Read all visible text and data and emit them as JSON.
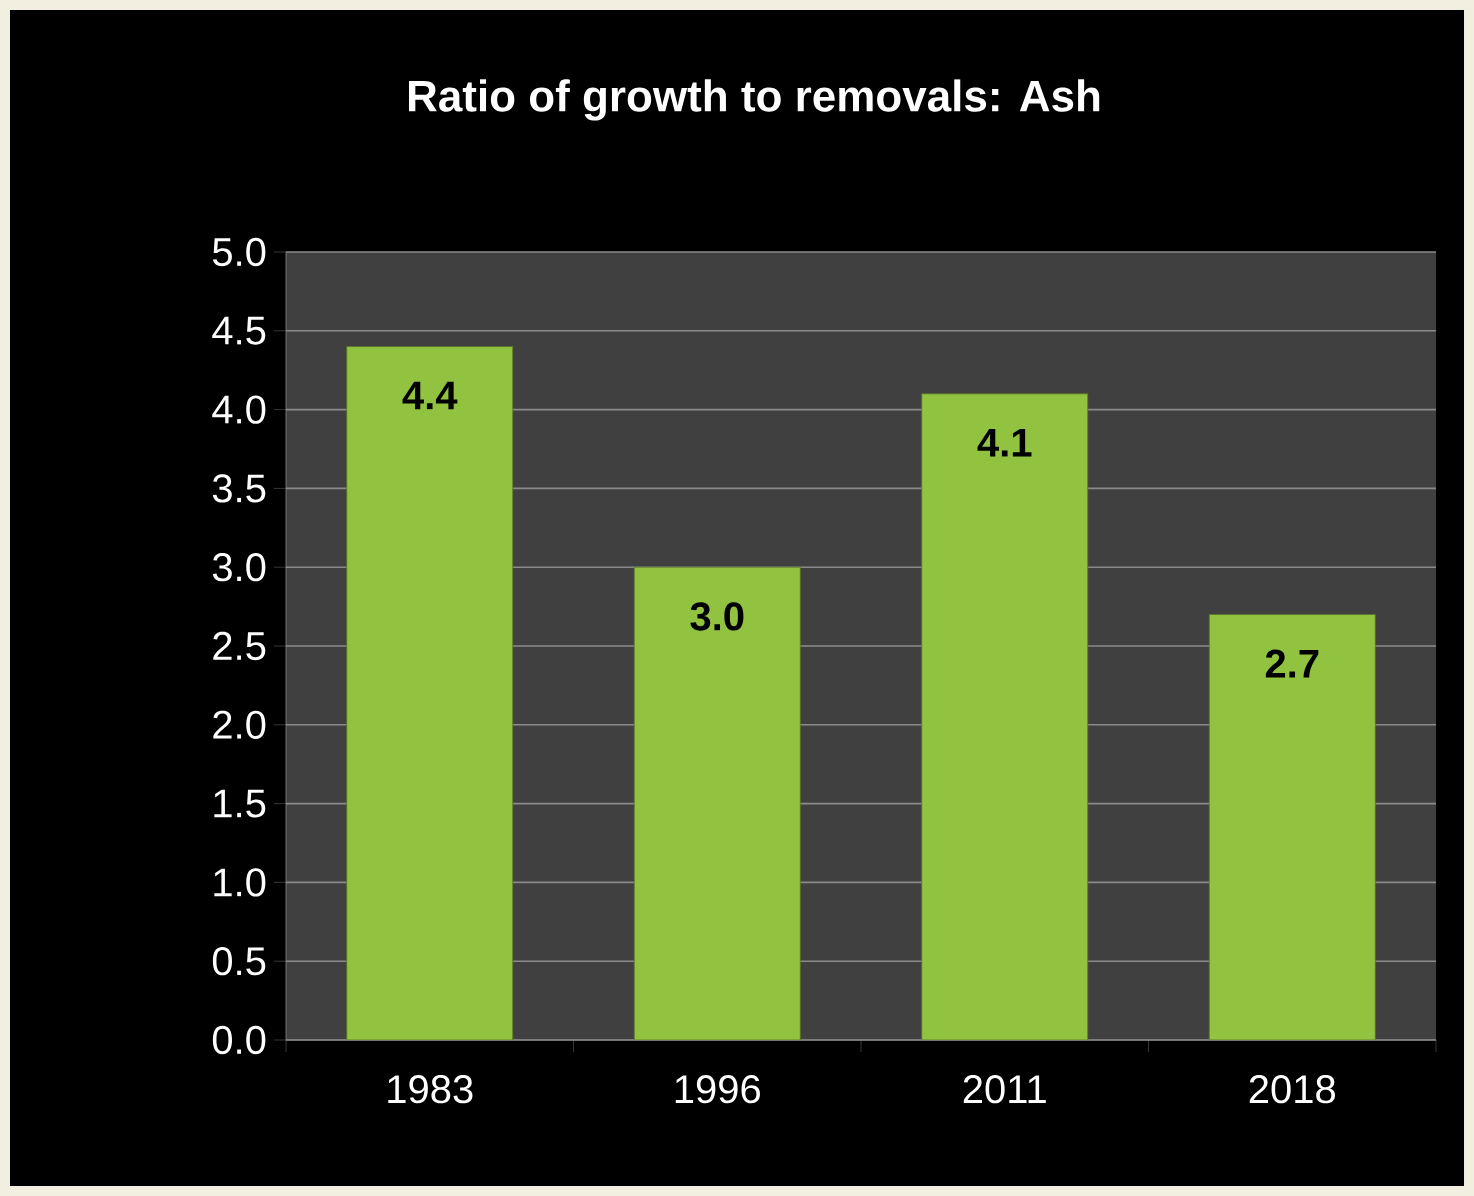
{
  "chart_data": {
    "type": "bar",
    "title": "Ratio of growth to removals: Ash",
    "categories": [
      "1983",
      "1996",
      "2011",
      "2018"
    ],
    "values": [
      4.4,
      3.0,
      4.1,
      2.7
    ],
    "value_labels": [
      "4.4",
      "3.0",
      "4.1",
      "2.7"
    ],
    "color": "#92c340",
    "ylim": [
      0,
      5
    ],
    "yticks": [
      {
        "value": 0,
        "label": "0.0"
      },
      {
        "value": 0.5,
        "label": "0.5"
      },
      {
        "value": 1,
        "label": "1.0"
      },
      {
        "value": 1.5,
        "label": "1.5"
      },
      {
        "value": 2,
        "label": "2.0"
      },
      {
        "value": 2.5,
        "label": "2.5"
      },
      {
        "value": 3,
        "label": "3.0"
      },
      {
        "value": 3.5,
        "label": "3.5"
      },
      {
        "value": 4,
        "label": "4.0"
      },
      {
        "value": 4.5,
        "label": "4.5"
      },
      {
        "value": 5,
        "label": "5.0"
      }
    ],
    "grid": "y"
  }
}
